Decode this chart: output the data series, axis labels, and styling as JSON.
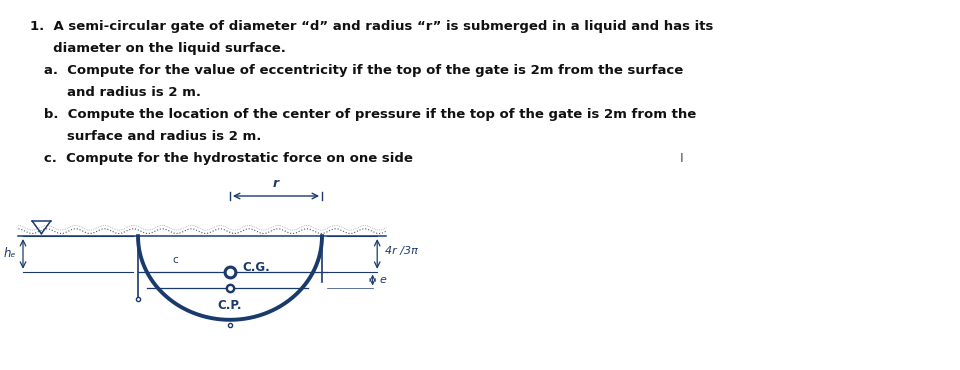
{
  "bg_color": "#ffffff",
  "dc": "#1a3a6b",
  "title_line1": "1.  A semi-circular gate of diameter “d” and radius “r” is submerged in a liquid and has its",
  "title_line2": "     diameter on the liquid surface.",
  "item_a": "   a.  Compute for the value of eccentricity if the top of the gate is 2m from the surface",
  "item_a2": "        and radius is 2 m.",
  "item_b": "   b.  Compute the location of the center of pressure if the top of the gate is 2m from the",
  "item_b2": "        surface and radius is 2 m.",
  "item_c": "   c.  Compute for the hydrostatic force on one side",
  "label_CG": "C.G.",
  "label_CP": "C.P.",
  "label_r": "r",
  "label_4r3pi": "4r /3π",
  "label_e": "e",
  "label_hcg": "hₑ",
  "label_c": "c",
  "cursor_I": "I"
}
